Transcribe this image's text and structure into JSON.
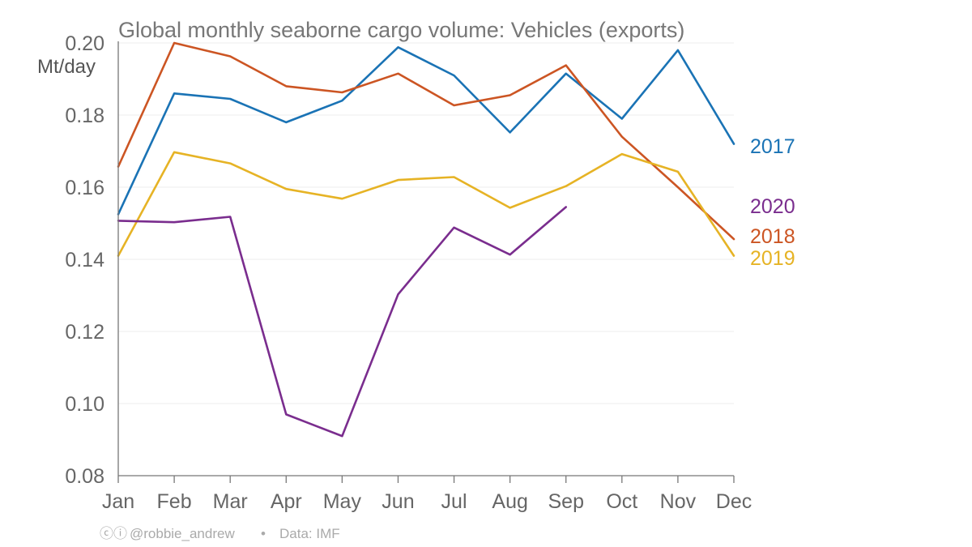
{
  "chart_data": {
    "type": "line",
    "title": "Global monthly seaborne cargo volume: Vehicles (exports)",
    "ylabel": "Mt/day",
    "xlabel": "",
    "categories": [
      "Jan",
      "Feb",
      "Mar",
      "Apr",
      "May",
      "Jun",
      "Jul",
      "Aug",
      "Sep",
      "Oct",
      "Nov",
      "Dec"
    ],
    "ylim": [
      0.08,
      0.2
    ],
    "yticks": [
      {
        "value": 0.08,
        "label": "0.08"
      },
      {
        "value": 0.1,
        "label": "0.10"
      },
      {
        "value": 0.12,
        "label": "0.12"
      },
      {
        "value": 0.14,
        "label": "0.14"
      },
      {
        "value": 0.16,
        "label": "0.16"
      },
      {
        "value": 0.18,
        "label": "0.18"
      },
      {
        "value": 0.2,
        "label": "0.20"
      }
    ],
    "grid": true,
    "legend": "direct labels at right end of lines",
    "series": [
      {
        "name": "2017",
        "color": "#1a73b5",
        "values": [
          0.1525,
          0.186,
          0.1845,
          0.178,
          0.184,
          0.1988,
          0.191,
          0.1752,
          0.1915,
          0.179,
          0.198,
          0.172
        ]
      },
      {
        "name": "2018",
        "color": "#cc5523",
        "values": [
          0.1657,
          0.2,
          0.1963,
          0.188,
          0.1863,
          0.1915,
          0.1827,
          0.1855,
          0.1938,
          0.174,
          0.16,
          0.1456
        ]
      },
      {
        "name": "2019",
        "color": "#e6b325",
        "values": [
          0.141,
          0.1697,
          0.1666,
          0.1595,
          0.1568,
          0.162,
          0.1628,
          0.1543,
          0.1603,
          0.1692,
          0.1643,
          0.141
        ]
      },
      {
        "name": "2020",
        "color": "#7a2d8e",
        "values": [
          0.1507,
          0.1503,
          0.1518,
          0.097,
          0.091,
          0.1303,
          0.1488,
          0.1413,
          0.1545,
          null,
          null,
          null
        ]
      }
    ]
  },
  "credit": {
    "license_icons": "ⓒⓘ",
    "author": "@robbie_andrew",
    "separator": "•",
    "source": "Data: IMF"
  }
}
